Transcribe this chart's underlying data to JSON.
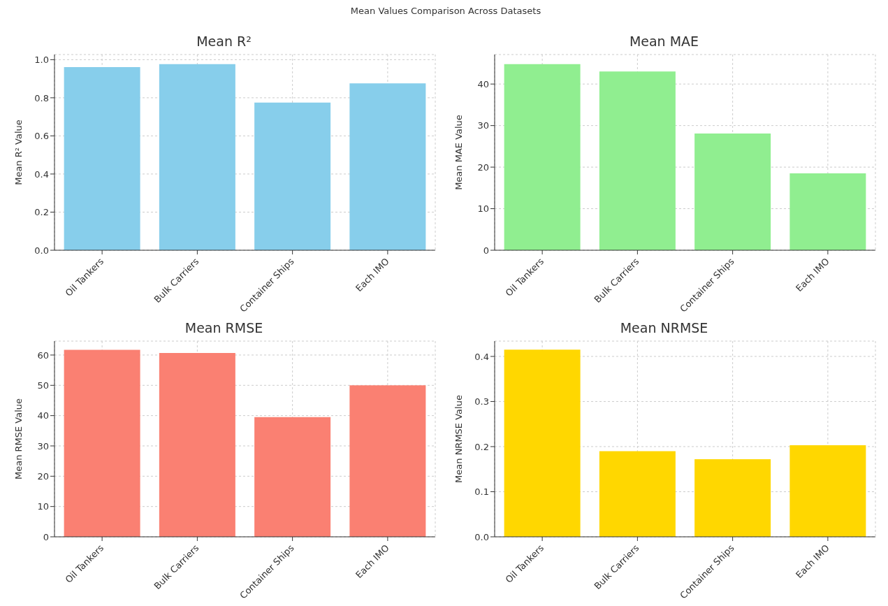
{
  "chart_data": [
    {
      "type": "bar",
      "title": "Mean R²",
      "ylabel": "Mean R² Value",
      "categories": [
        "Oil Tankers",
        "Bulk Carriers",
        "Container Ships",
        "Each IMO"
      ],
      "values": [
        0.961,
        0.977,
        0.775,
        0.876
      ],
      "color": "#87ceeb",
      "ylim": [
        0,
        1.027
      ],
      "yticks": [
        {
          "value": 0,
          "label": "0.0"
        },
        {
          "value": 0.2,
          "label": "0.2"
        },
        {
          "value": 0.4,
          "label": "0.4"
        },
        {
          "value": 0.6,
          "label": "0.6"
        },
        {
          "value": 0.8,
          "label": "0.8"
        },
        {
          "value": 1,
          "label": "1.0"
        }
      ],
      "grid": true,
      "annotations": [
        "Mean Values Comparison Across Datasets"
      ]
    },
    {
      "type": "bar",
      "title": "Mean MAE",
      "ylabel": "Mean MAE Value",
      "categories": [
        "Oil Tankers",
        "Bulk Carriers",
        "Container Ships",
        "Each IMO"
      ],
      "values": [
        44.8,
        43.0,
        28.1,
        18.5
      ],
      "color": "#90ee90",
      "ylim": [
        0,
        47.1
      ],
      "yticks": [
        0,
        10,
        20,
        30,
        40
      ],
      "grid": true
    },
    {
      "type": "bar",
      "title": "Mean RMSE",
      "ylabel": "Mean RMSE Value",
      "categories": [
        "Oil Tankers",
        "Bulk Carriers",
        "Container Ships",
        "Each IMO"
      ],
      "values": [
        61.7,
        60.7,
        39.5,
        50.0
      ],
      "color": "#fa8072",
      "ylim": [
        0,
        64.6
      ],
      "yticks": [
        0,
        10,
        20,
        30,
        40,
        50,
        60
      ],
      "grid": true
    },
    {
      "type": "bar",
      "title": "Mean NRMSE",
      "ylabel": "Mean NRMSE Value",
      "categories": [
        "Oil Tankers",
        "Bulk Carriers",
        "Container Ships",
        "Each IMO"
      ],
      "values": [
        0.415,
        0.19,
        0.172,
        0.203
      ],
      "color": "#ffd700",
      "ylim": [
        0,
        0.434
      ],
      "yticks": [
        {
          "value": 0,
          "label": "0.0"
        },
        {
          "value": 0.1,
          "label": "0.1"
        },
        {
          "value": 0.2,
          "label": "0.2"
        },
        {
          "value": 0.3,
          "label": "0.3"
        },
        {
          "value": 0.4,
          "label": "0.4"
        }
      ],
      "grid": true
    }
  ]
}
